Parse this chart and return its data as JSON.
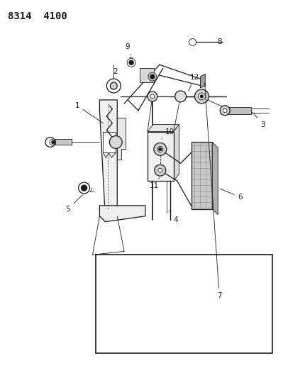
{
  "title": "8314  4100",
  "bg_color": "#ffffff",
  "line_color": "#1a1a1a",
  "fig_width": 3.99,
  "fig_height": 5.33,
  "dpi": 100,
  "title_fontsize": 10,
  "label_fontsize": 7.5
}
